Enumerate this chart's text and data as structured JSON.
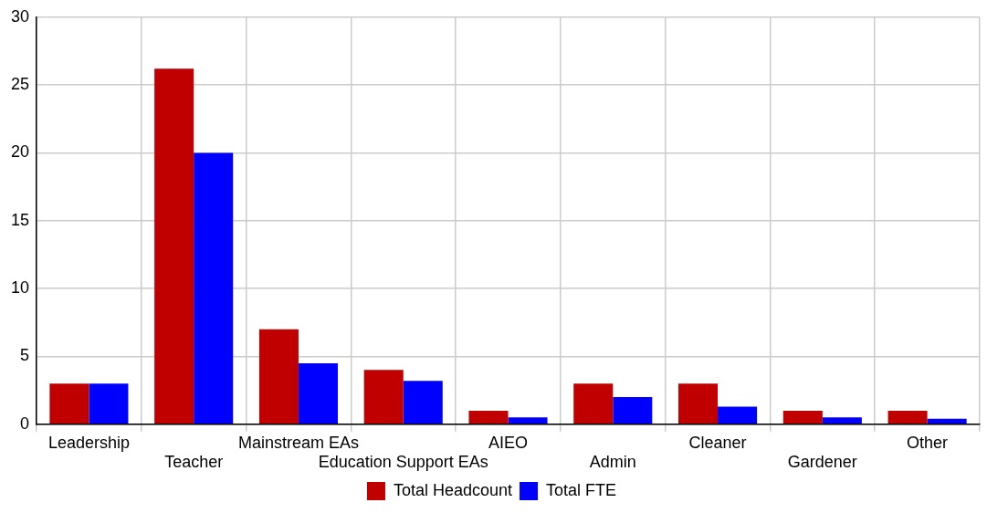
{
  "chart_data": {
    "type": "bar",
    "categories": [
      "Leadership",
      "Teacher",
      "Mainstream EAs",
      "Education Support EAs",
      "AIEO",
      "Admin",
      "Cleaner",
      "Gardener",
      "Other"
    ],
    "series": [
      {
        "name": "Total Headcount",
        "color": "#c00000",
        "values": [
          3,
          26.2,
          7,
          4,
          1,
          3,
          3,
          1,
          1
        ]
      },
      {
        "name": "Total FTE",
        "color": "#0000ff",
        "values": [
          3,
          20,
          4.5,
          3.2,
          0.5,
          2,
          1.3,
          0.5,
          0.4
        ]
      }
    ],
    "ylim": [
      0,
      30
    ],
    "yticks": [
      0,
      5,
      10,
      15,
      20,
      25,
      30
    ],
    "grid": true,
    "legend": "bottom"
  }
}
